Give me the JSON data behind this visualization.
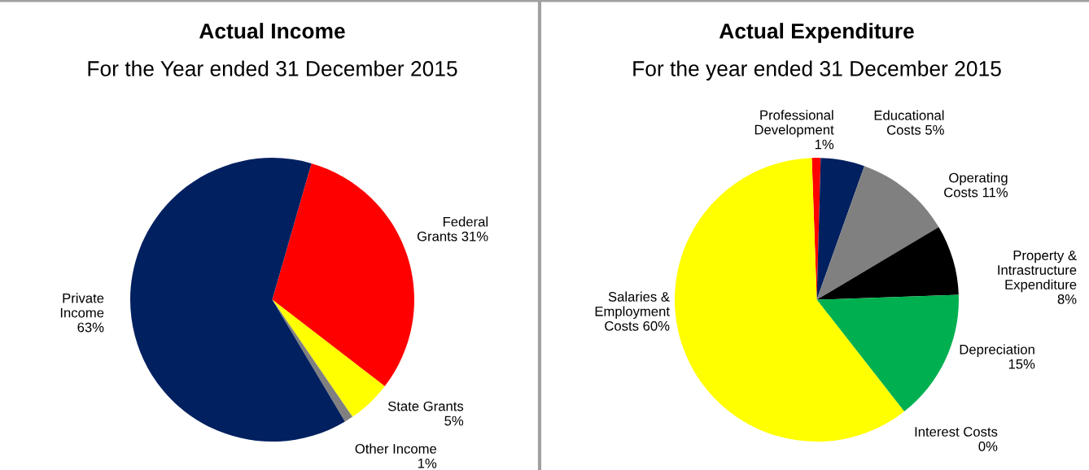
{
  "chart_data": [
    {
      "type": "pie",
      "title": "Actual Income",
      "subtitle": "For the Year ended 31 December 2015",
      "categories": [
        "Federal Grants",
        "State Grants",
        "Other Income",
        "Private Income"
      ],
      "values": [
        31,
        5,
        1,
        63
      ],
      "colors": [
        "#ff0000",
        "#ffff00",
        "#808080",
        "#002060"
      ],
      "data_labels": true,
      "value_labels": [
        "31%",
        "5%",
        "1%",
        "63%"
      ],
      "legend": false
    },
    {
      "type": "pie",
      "title": "Actual Expenditure",
      "subtitle": "For the year ended 31 December 2015",
      "categories": [
        "Professional Development",
        "Educational Costs",
        "Operating Costs",
        "Property & Intrastructure Expenditure",
        "Depreciation",
        "Interest Costs",
        "Salaries & Employment Costs"
      ],
      "values": [
        1,
        5,
        11,
        8,
        15,
        0,
        60
      ],
      "colors": [
        "#ff0000",
        "#002060",
        "#808080",
        "#000000",
        "#00b050",
        "#00b0f0",
        "#ffff00"
      ],
      "data_labels": true,
      "value_labels": [
        "1%",
        "5%",
        "11%",
        "8%",
        "15%",
        "0%",
        "60%"
      ],
      "legend": false
    }
  ]
}
